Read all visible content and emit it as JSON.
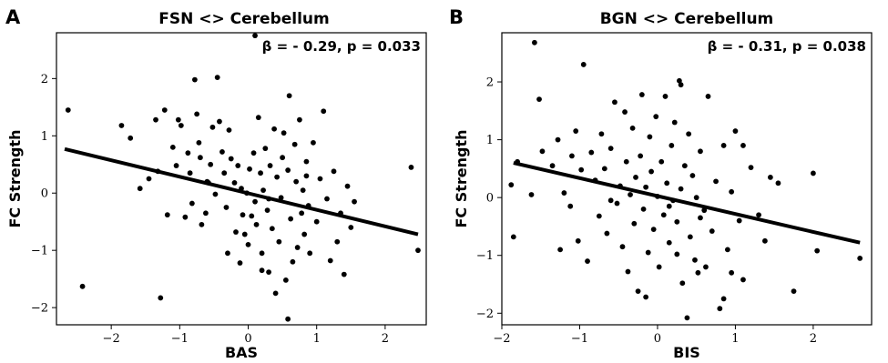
{
  "chart_data": [
    {
      "type": "scatter",
      "panel_label": "A",
      "title": "FSN <> Cerebellum",
      "annotation": "β = - 0.29,  p = 0.033",
      "xlabel": "BAS",
      "ylabel": "FC Strength",
      "xlim": [
        -2.8,
        2.6
      ],
      "ylim": [
        -2.3,
        2.8
      ],
      "xticks": [
        -2,
        -1,
        0,
        1,
        2
      ],
      "yticks": [
        -2,
        -1,
        0,
        1,
        2
      ],
      "xtick_labels": [
        "−2",
        "−1",
        "0",
        "1",
        "2"
      ],
      "ytick_labels": [
        "−2",
        "−1",
        "0",
        "1",
        "2"
      ],
      "fit_line": {
        "x": [
          -2.68,
          2.48
        ],
        "y": [
          0.77,
          -0.72
        ]
      },
      "points": [
        [
          -2.63,
          1.45
        ],
        [
          -2.42,
          -1.63
        ],
        [
          -1.85,
          1.18
        ],
        [
          -1.72,
          0.96
        ],
        [
          -1.58,
          0.08
        ],
        [
          -1.45,
          0.25
        ],
        [
          -1.35,
          1.28
        ],
        [
          -1.32,
          0.38
        ],
        [
          -1.28,
          -1.83
        ],
        [
          -1.22,
          1.45
        ],
        [
          -1.18,
          -0.38
        ],
        [
          -1.1,
          0.8
        ],
        [
          -1.05,
          0.48
        ],
        [
          -1.02,
          1.28
        ],
        [
          -0.98,
          1.18
        ],
        [
          -0.92,
          -0.42
        ],
        [
          -0.88,
          0.7
        ],
        [
          -0.85,
          0.35
        ],
        [
          -0.82,
          -0.18
        ],
        [
          -0.78,
          1.98
        ],
        [
          -0.75,
          1.38
        ],
        [
          -0.72,
          0.88
        ],
        [
          -0.7,
          0.62
        ],
        [
          -0.68,
          -0.55
        ],
        [
          -0.62,
          -0.35
        ],
        [
          -0.58,
          0.18
        ],
        [
          -0.55,
          0.5
        ],
        [
          -0.52,
          1.15
        ],
        [
          -0.48,
          -0.02
        ],
        [
          -0.45,
          2.02
        ],
        [
          -0.42,
          1.25
        ],
        [
          -0.38,
          0.72
        ],
        [
          -0.35,
          0.35
        ],
        [
          -0.32,
          -0.25
        ],
        [
          -0.28,
          1.1
        ],
        [
          -0.25,
          0.6
        ],
        [
          -0.2,
          0.18
        ],
        [
          -0.18,
          -0.68
        ],
        [
          -0.15,
          0.48
        ],
        [
          -0.12,
          -1.22
        ],
        [
          -0.1,
          0.08
        ],
        [
          -0.08,
          -0.38
        ],
        [
          -0.05,
          -0.72
        ],
        [
          -0.02,
          0.0
        ],
        [
          0.0,
          -0.9
        ],
        [
          0.02,
          0.42
        ],
        [
          0.05,
          -0.4
        ],
        [
          0.08,
          0.7
        ],
        [
          0.1,
          -0.15
        ],
        [
          0.12,
          -0.55
        ],
        [
          0.15,
          1.32
        ],
        [
          0.18,
          0.35
        ],
        [
          0.2,
          -1.05
        ],
        [
          0.22,
          0.05
        ],
        [
          0.25,
          0.78
        ],
        [
          0.28,
          -0.3
        ],
        [
          0.3,
          -1.38
        ],
        [
          0.32,
          0.48
        ],
        [
          0.35,
          -0.62
        ],
        [
          0.38,
          1.12
        ],
        [
          0.4,
          -1.75
        ],
        [
          0.42,
          0.28
        ],
        [
          0.45,
          -0.85
        ],
        [
          0.48,
          -0.08
        ],
        [
          0.5,
          0.62
        ],
        [
          0.52,
          1.05
        ],
        [
          0.55,
          -1.52
        ],
        [
          0.58,
          0.4
        ],
        [
          0.6,
          1.7
        ],
        [
          0.62,
          -0.45
        ],
        [
          0.65,
          -1.2
        ],
        [
          0.68,
          0.85
        ],
        [
          0.7,
          0.2
        ],
        [
          0.72,
          -0.95
        ],
        [
          0.75,
          1.28
        ],
        [
          0.78,
          -0.35
        ],
        [
          0.8,
          0.05
        ],
        [
          0.82,
          -0.72
        ],
        [
          0.85,
          0.55
        ],
        [
          0.88,
          -0.22
        ],
        [
          0.9,
          -1.05
        ],
        [
          0.95,
          0.88
        ],
        [
          1.0,
          -0.5
        ],
        [
          1.05,
          0.25
        ],
        [
          1.1,
          1.43
        ],
        [
          1.15,
          -0.1
        ],
        [
          1.2,
          -1.18
        ],
        [
          1.25,
          0.38
        ],
        [
          1.3,
          -0.85
        ],
        [
          1.35,
          -0.35
        ],
        [
          1.4,
          -1.42
        ],
        [
          1.45,
          0.12
        ],
        [
          1.5,
          -0.6
        ],
        [
          1.55,
          -0.15
        ],
        [
          2.38,
          0.45
        ],
        [
          2.48,
          -1.0
        ],
        [
          0.1,
          2.75
        ],
        [
          0.58,
          -2.2
        ],
        [
          0.2,
          -1.35
        ],
        [
          -0.3,
          -1.05
        ],
        [
          0.3,
          -0.1
        ],
        [
          -0.6,
          0.2
        ],
        [
          0.85,
          0.3
        ]
      ]
    },
    {
      "type": "scatter",
      "panel_label": "B",
      "title": "BGN <> Cerebellum",
      "annotation": "β = - 0.31,  p = 0.038",
      "xlabel": "BIS",
      "ylabel": "FC Strength",
      "xlim": [
        -2.0,
        2.75
      ],
      "ylim": [
        -2.2,
        2.85
      ],
      "xticks": [
        -2,
        -1,
        0,
        1,
        2
      ],
      "yticks": [
        -2,
        -1,
        0,
        1,
        2
      ],
      "xtick_labels": [
        "−2",
        "−1",
        "0",
        "1",
        "2"
      ],
      "ytick_labels": [
        "−2",
        "−1",
        "0",
        "1",
        "2"
      ],
      "fit_line": {
        "x": [
          -1.85,
          2.6
        ],
        "y": [
          0.6,
          -0.78
        ]
      },
      "points": [
        [
          -1.88,
          0.22
        ],
        [
          -1.85,
          -0.68
        ],
        [
          -1.8,
          0.62
        ],
        [
          -1.62,
          0.05
        ],
        [
          -1.58,
          2.68
        ],
        [
          -1.52,
          1.7
        ],
        [
          -1.48,
          0.8
        ],
        [
          -1.35,
          0.55
        ],
        [
          -1.28,
          1.0
        ],
        [
          -1.25,
          -0.9
        ],
        [
          -1.2,
          0.08
        ],
        [
          -1.12,
          -0.15
        ],
        [
          -1.05,
          1.15
        ],
        [
          -1.02,
          -0.75
        ],
        [
          -0.98,
          0.48
        ],
        [
          -0.95,
          2.3
        ],
        [
          -0.9,
          -1.1
        ],
        [
          -0.85,
          0.78
        ],
        [
          -0.8,
          0.3
        ],
        [
          -0.75,
          -0.32
        ],
        [
          -0.72,
          1.1
        ],
        [
          -0.68,
          0.5
        ],
        [
          -0.65,
          -0.62
        ],
        [
          -0.6,
          0.85
        ],
        [
          -0.55,
          1.65
        ],
        [
          -0.52,
          -0.1
        ],
        [
          -0.48,
          0.2
        ],
        [
          -0.45,
          -0.85
        ],
        [
          -0.42,
          1.48
        ],
        [
          -0.4,
          0.62
        ],
        [
          -0.38,
          -1.28
        ],
        [
          -0.35,
          0.05
        ],
        [
          -0.32,
          1.2
        ],
        [
          -0.3,
          -0.45
        ],
        [
          -0.28,
          0.35
        ],
        [
          -0.25,
          -1.62
        ],
        [
          -0.22,
          0.72
        ],
        [
          -0.2,
          1.78
        ],
        [
          -0.18,
          -0.2
        ],
        [
          -0.15,
          0.18
        ],
        [
          -0.12,
          -0.95
        ],
        [
          -0.1,
          1.05
        ],
        [
          -0.08,
          0.45
        ],
        [
          -0.05,
          -0.55
        ],
        [
          -0.02,
          1.4
        ],
        [
          0.0,
          0.02
        ],
        [
          0.02,
          -1.2
        ],
        [
          0.05,
          0.62
        ],
        [
          0.08,
          -0.3
        ],
        [
          0.1,
          1.75
        ],
        [
          0.12,
          0.25
        ],
        [
          0.15,
          -0.78
        ],
        [
          0.18,
          0.9
        ],
        [
          0.2,
          -0.05
        ],
        [
          0.22,
          1.3
        ],
        [
          0.25,
          -0.42
        ],
        [
          0.28,
          2.02
        ],
        [
          0.3,
          0.15
        ],
        [
          0.32,
          -1.48
        ],
        [
          0.35,
          0.55
        ],
        [
          0.38,
          -2.08
        ],
        [
          0.4,
          1.1
        ],
        [
          0.42,
          -0.68
        ],
        [
          0.45,
          0.38
        ],
        [
          0.48,
          -1.08
        ],
        [
          0.5,
          0.0
        ],
        [
          0.52,
          -1.3
        ],
        [
          0.55,
          0.8
        ],
        [
          0.6,
          -0.22
        ],
        [
          0.65,
          1.75
        ],
        [
          0.7,
          -0.58
        ],
        [
          0.75,
          0.28
        ],
        [
          0.8,
          -1.92
        ],
        [
          0.85,
          0.9
        ],
        [
          0.9,
          -0.9
        ],
        [
          0.95,
          0.1
        ],
        [
          1.0,
          1.15
        ],
        [
          1.05,
          -0.4
        ],
        [
          1.1,
          -1.42
        ],
        [
          1.2,
          0.52
        ],
        [
          1.3,
          -0.3
        ],
        [
          1.38,
          -0.75
        ],
        [
          1.45,
          0.35
        ],
        [
          1.55,
          0.25
        ],
        [
          1.75,
          -1.62
        ],
        [
          2.0,
          0.42
        ],
        [
          2.05,
          -0.92
        ],
        [
          2.6,
          -1.05
        ],
        [
          0.25,
          -0.98
        ],
        [
          -0.15,
          -1.72
        ],
        [
          0.55,
          -0.35
        ],
        [
          -0.6,
          -0.05
        ],
        [
          0.3,
          1.95
        ],
        [
          0.85,
          -1.75
        ],
        [
          -1.1,
          0.72
        ],
        [
          0.95,
          -1.3
        ],
        [
          0.15,
          -0.15
        ],
        [
          0.62,
          -1.2
        ],
        [
          1.1,
          0.9
        ]
      ]
    }
  ]
}
